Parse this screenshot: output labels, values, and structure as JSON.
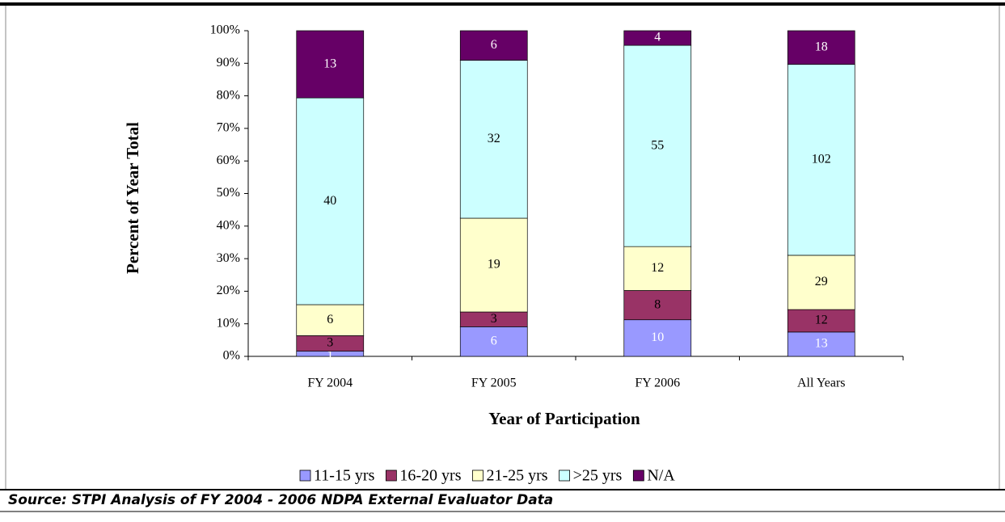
{
  "chart_data": {
    "type": "bar",
    "stack": "percent",
    "source": "Source: STPI Analysis of FY 2004 - 2006 NDPA External Evaluator Data",
    "ylabel": "Percent of Year Total",
    "xlabel": "Year of Participation",
    "categories": [
      "FY 2004",
      "FY 2005",
      "FY 2006",
      "All Years"
    ],
    "series": [
      {
        "name": "11-15 yrs",
        "color": "#9999ff",
        "label_color": "#ffffff",
        "values": [
          1,
          6,
          10,
          13
        ]
      },
      {
        "name": "16-20 yrs",
        "color": "#993366",
        "label_color": "#000000",
        "values": [
          3,
          3,
          8,
          12
        ]
      },
      {
        "name": "21-25 yrs",
        "color": "#ffffcc",
        "label_color": "#000000",
        "values": [
          6,
          19,
          12,
          29
        ]
      },
      {
        "name": ">25 yrs",
        "color": "#ccffff",
        "label_color": "#000000",
        "values": [
          40,
          32,
          55,
          102
        ]
      },
      {
        "name": "N/A",
        "color": "#660066",
        "label_color": "#ffffff",
        "values": [
          13,
          6,
          4,
          18
        ]
      }
    ],
    "ylim": [
      0,
      100
    ],
    "yticks": [
      {
        "value": 0,
        "label": "0%"
      },
      {
        "value": 10,
        "label": "10%"
      },
      {
        "value": 20,
        "label": "20%"
      },
      {
        "value": 30,
        "label": "30%"
      },
      {
        "value": 40,
        "label": "40%"
      },
      {
        "value": 50,
        "label": "50%"
      },
      {
        "value": 60,
        "label": "60%"
      },
      {
        "value": 70,
        "label": "70%"
      },
      {
        "value": 80,
        "label": "80%"
      },
      {
        "value": 90,
        "label": "90%"
      },
      {
        "value": 100,
        "label": "100%"
      }
    ],
    "legend": "bottom"
  }
}
